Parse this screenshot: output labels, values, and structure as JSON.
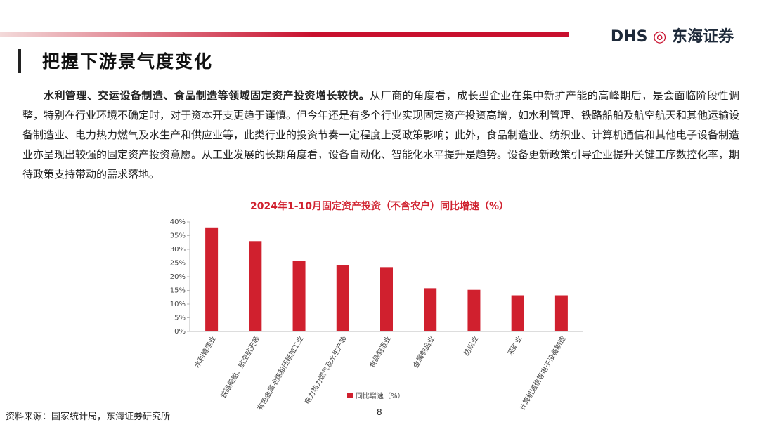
{
  "header": {
    "title": "把握下游景气度变化",
    "brand_latin": "DHS",
    "brand_cn": "东海证券"
  },
  "paragraph": {
    "lead": "水利管理、交运设备制造、食品制造等领域固定资产投资增长较快。",
    "body": "从厂商的角度看，成长型企业在集中新扩产能的高峰期后，是会面临阶段性调整，特别在行业环境不确定时，对于资本开支更趋于谨慎。但今年还是有多个行业实现固定资产投资高增，如水利管理、铁路船舶及航空航天和其他运输设备制造业、电力热力燃气及水生产和供应业等，此类行业的投资节奏一定程度上受政策影响；此外，食品制造业、纺织业、计算机通信和其他电子设备制造业亦呈现出较强的固定资产投资意愿。从工业发展的长期角度看，设备自动化、智能化水平提升是趋势。设备更新政策引导企业提升关键工序数控化率，期待政策支持带动的需求落地。"
  },
  "chart_data": {
    "type": "bar",
    "title": "2024年1-10月固定资产投资（不含农户）同比增速（%）",
    "categories": [
      "水利管理业",
      "铁路船舶、航空航天等",
      "有色金属冶炼和压延加工业",
      "电力热力燃气及水生产等",
      "食品制造业",
      "金属制品业",
      "纺织业",
      "采矿业",
      "计算机通信等电子设备制造"
    ],
    "series": [
      {
        "name": "同比增速（%）",
        "color": "#d0202e",
        "values": [
          38,
          33,
          25.8,
          24.1,
          23.5,
          15.8,
          15.2,
          13.2,
          13.2
        ]
      }
    ],
    "ylim": [
      0,
      40
    ],
    "yticks": [
      {
        "value": 0,
        "label": "0%"
      },
      {
        "value": 5,
        "label": "5%"
      },
      {
        "value": 10,
        "label": "10%"
      },
      {
        "value": 15,
        "label": "15%"
      },
      {
        "value": 20,
        "label": "20%"
      },
      {
        "value": 25,
        "label": "25%"
      },
      {
        "value": 30,
        "label": "30%"
      },
      {
        "value": 35,
        "label": "35%"
      },
      {
        "value": 40,
        "label": "40%"
      }
    ],
    "legend": "bottom"
  },
  "footer": {
    "source": "资料来源：国家统计局，东海证券研究所",
    "page": "8"
  }
}
